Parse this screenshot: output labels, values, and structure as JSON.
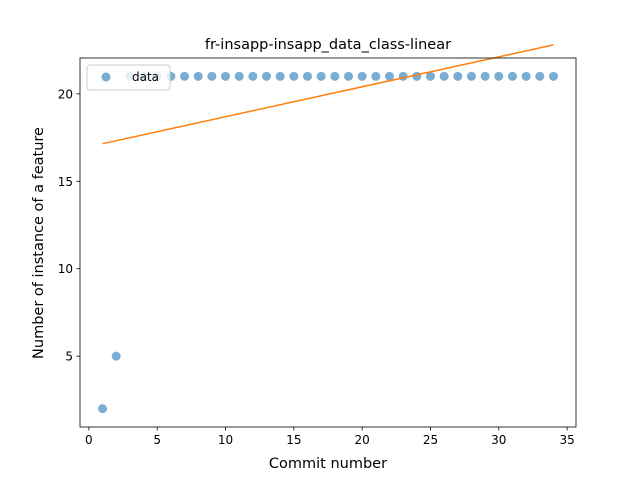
{
  "chart_data": {
    "type": "scatter",
    "title": "fr-insapp-insapp_data_class-linear",
    "xlabel": "Commit number",
    "ylabel": "Number of instance of a feature",
    "xlim": [
      -0.65,
      35.65
    ],
    "ylim": [
      0.95,
      22.05
    ],
    "xticks": [
      0,
      5,
      10,
      15,
      20,
      25,
      30,
      35
    ],
    "yticks": [
      5,
      10,
      15,
      20
    ],
    "grid": false,
    "legend": {
      "position": "top-left",
      "entries": [
        "data"
      ]
    },
    "series": [
      {
        "name": "data",
        "kind": "scatter",
        "color": "#1f77b4",
        "x": [
          1,
          2,
          3,
          4,
          5,
          6,
          7,
          8,
          9,
          10,
          11,
          12,
          13,
          14,
          15,
          16,
          17,
          18,
          19,
          20,
          21,
          22,
          23,
          24,
          25,
          26,
          27,
          28,
          29,
          30,
          31,
          32,
          33,
          34
        ],
        "y": [
          2,
          5,
          21,
          21,
          21,
          21,
          21,
          21,
          21,
          21,
          21,
          21,
          21,
          21,
          21,
          21,
          21,
          21,
          21,
          21,
          21,
          21,
          21,
          21,
          21,
          21,
          21,
          21,
          21,
          21,
          21,
          21,
          21,
          21
        ]
      },
      {
        "kind": "line",
        "color": "#ff7f0e",
        "x": [
          1,
          34
        ],
        "y": [
          17.15,
          22.8
        ]
      }
    ]
  }
}
